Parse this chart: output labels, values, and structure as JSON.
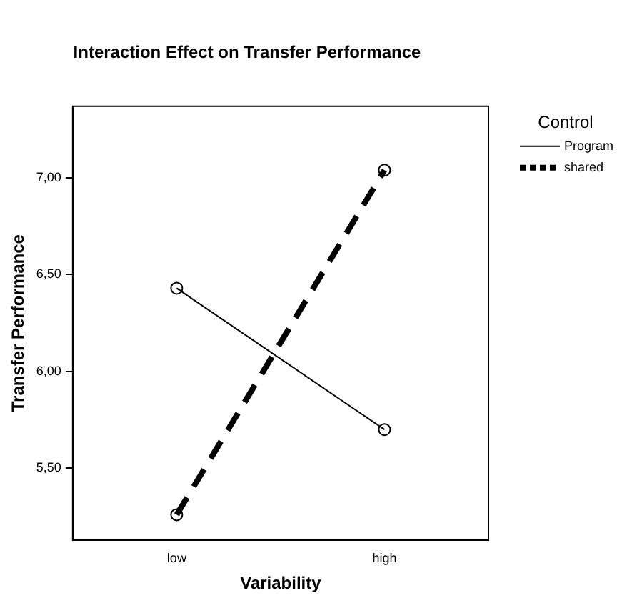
{
  "chart_data": {
    "type": "line",
    "title": "Interaction Effect on Transfer Performance",
    "xlabel": "Variability",
    "ylabel": "Transfer Performance",
    "legend_title": "Control",
    "categories": [
      "low",
      "high"
    ],
    "series": [
      {
        "name": "Program",
        "color": "#000000",
        "values": [
          6.43,
          5.7
        ],
        "line_style": "solid"
      },
      {
        "name": "shared",
        "color": "#000000",
        "values": [
          5.26,
          7.04
        ],
        "line_style": "dashed"
      }
    ],
    "ylim": [
      5.13,
      7.37
    ],
    "yticks": [
      {
        "value": 5.5,
        "label": "5,50"
      },
      {
        "value": 6,
        "label": "6,00"
      },
      {
        "value": 6.5,
        "label": "6,50"
      },
      {
        "value": 7,
        "label": "7,00"
      }
    ],
    "grid": false,
    "legend": "top right",
    "marker": "circle"
  }
}
